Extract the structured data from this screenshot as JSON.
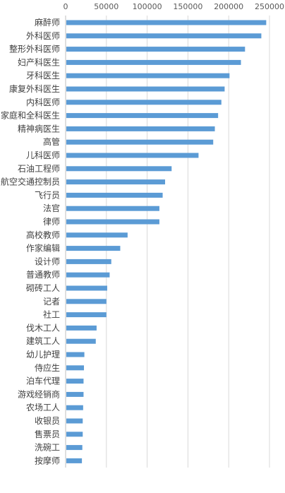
{
  "chart_data": {
    "type": "bar",
    "orientation": "horizontal",
    "title": "",
    "xlabel": "",
    "ylabel": "",
    "xlim": [
      0,
      250000
    ],
    "x_ticks": [
      0,
      50000,
      100000,
      150000,
      200000,
      250000
    ],
    "x_tick_labels": [
      "0",
      "50000",
      "100000",
      "150000",
      "200000",
      "250000"
    ],
    "x_axis_position": "top",
    "grid": true,
    "legend": "none",
    "bar_color": "#5B9BD5",
    "grid_color": "#D9D9D9",
    "categories": [
      "麻醉师",
      "外科医师",
      "整形外科医师",
      "妇产科医生",
      "牙科医生",
      "康复外科医生",
      "内科医师",
      "家庭和全科医生",
      "精神病医生",
      "高管",
      "儿科医师",
      "石油工程师",
      "航空交通控制员",
      "飞行员",
      "法官",
      "律师",
      "高校教师",
      "作家编辑",
      "设计师",
      "普通教师",
      "砌砖工人",
      "记者",
      "社工",
      "伐木工人",
      "建筑工人",
      "幼儿护理",
      "侍应生",
      "泊车代理",
      "游戏经销商",
      "农场工人",
      "收银员",
      "售票员",
      "洗碗工",
      "按摩师"
    ],
    "values": [
      246000,
      240000,
      220000,
      215000,
      201000,
      195000,
      191000,
      187000,
      183000,
      181000,
      163000,
      130000,
      122000,
      119000,
      115000,
      115000,
      76000,
      67000,
      56000,
      54000,
      51000,
      50000,
      50000,
      38000,
      37000,
      23000,
      22500,
      22000,
      22000,
      21500,
      21000,
      21000,
      20500,
      20000
    ]
  }
}
